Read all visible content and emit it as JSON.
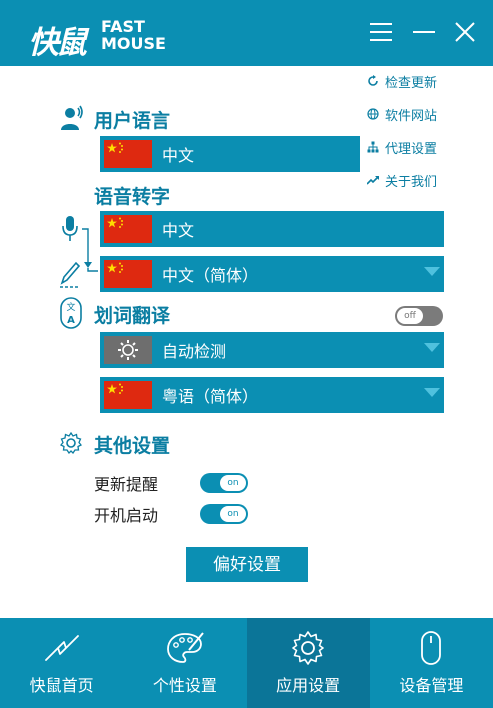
{
  "app": {
    "logo_cn": "快鼠",
    "logo_en_line1": "FAST",
    "logo_en_line2": "MOUSE"
  },
  "menu": {
    "items": [
      {
        "label": "检查更新",
        "icon": "refresh-icon"
      },
      {
        "label": "软件网站",
        "icon": "globe-icon"
      },
      {
        "label": "代理设置",
        "icon": "network-icon"
      },
      {
        "label": "关于我们",
        "icon": "trend-icon"
      }
    ]
  },
  "sections": {
    "user_language": {
      "title": "用户语言",
      "value": "中文"
    },
    "speech_to_text": {
      "title": "语音转字",
      "source_value": "中文",
      "target_value": "中文（简体）"
    },
    "word_translate": {
      "title": "划词翻译",
      "toggle_text": "off",
      "source_value": "自动检测",
      "target_value": "粤语（简体）"
    },
    "other_settings": {
      "title": "其他设置",
      "update_reminder_label": "更新提醒",
      "update_reminder_toggle": "on",
      "startup_label": "开机启动",
      "startup_toggle": "on"
    }
  },
  "preferences_button": "偏好设置",
  "bottom_nav": {
    "items": [
      {
        "label": "快鼠首页",
        "icon": "lightning-icon"
      },
      {
        "label": "个性设置",
        "icon": "palette-icon"
      },
      {
        "label": "应用设置",
        "icon": "gear-icon",
        "active": true
      },
      {
        "label": "设备管理",
        "icon": "mouse-icon"
      }
    ]
  },
  "colors": {
    "primary": "#0b8fb3",
    "active_tab": "#0b7598",
    "accent_text": "#0b7ea2",
    "flag_red": "#de2910",
    "flag_yellow": "#ffde00"
  }
}
